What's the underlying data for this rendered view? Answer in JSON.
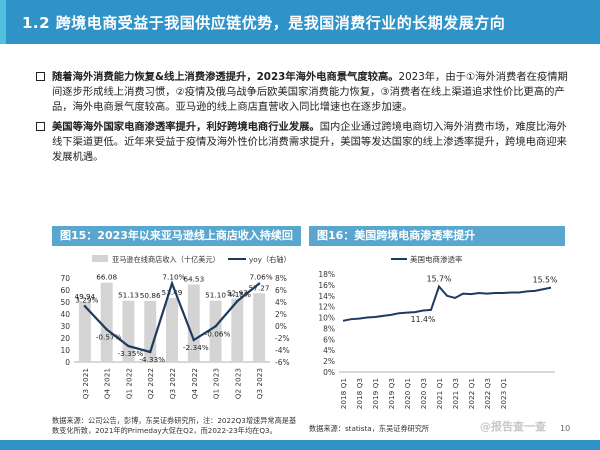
{
  "header": {
    "title": "1.2 跨境电商受益于我国供应链优势，是我国消费行业的长期发展方向"
  },
  "bullets": [
    {
      "bold": "随着海外消费能力恢复&线上消费渗透提升，2023年海外电商景气度较高。",
      "text": "2023年，由于①海外消费者在疫情期间逐步形成线上消费习惯，②疫情及俄乌战争后欧美国家消费能力恢复，③消费者在线上渠道追求性价比更高的产品，海外电商景气度较高。亚马逊的线上商店直营收入同比增速也在逐步加速。"
    },
    {
      "bold": "美国等海外国家电商渗透率提升，利好跨境电商行业发展。",
      "text": "国内企业通过跨境电商切入海外消费市场，难度比海外线下渠道更低。近年来受益于疫情及海外性价比消费需求提升，美国等发达国家的线上渗透率提升，跨境电商迎来发展机遇。"
    }
  ],
  "panel1": {
    "title": "图15：2023年以来亚马逊线上商店收入持续回暖",
    "source": "数据来源：公司公告，彭博，东吴证券研究所，注：2022Q3增速异常高是基数变化所致，2021年的Primeday大促在Q2，而2022-23年均在Q3。"
  },
  "panel2": {
    "title": "图16：美国跨境电商渗透率提升",
    "source": "数据来源：statista，东吴证券研究所"
  },
  "footer": {
    "watermark": "@报告查一查",
    "page": "10"
  },
  "colors": {
    "header": "#2f93c7",
    "bar": "#d4d4d4",
    "line": "#1f3a5f"
  },
  "chart_data": [
    {
      "type": "bar",
      "title": "图15：2023年以来亚马逊线上商店收入持续回暖",
      "categories": [
        "Q3 2021",
        "Q4 2021",
        "Q1 2022",
        "Q2 2022",
        "Q3 2022",
        "Q4 2022",
        "Q1 2023",
        "Q2 2023",
        "Q3 2023"
      ],
      "series": [
        {
          "name": "亚马逊在线商店收入（十亿美元）",
          "type": "bar",
          "axis": "left",
          "values": [
            49.94,
            66.08,
            51.13,
            50.86,
            53.49,
            64.53,
            51.1,
            52.97,
            57.27
          ]
        },
        {
          "name": "yoy（右轴）",
          "type": "line",
          "axis": "right",
          "values": [
            3.29,
            -0.57,
            -3.35,
            -4.33,
            7.1,
            -2.34,
            -0.06,
            4.15,
            7.06
          ],
          "labels": [
            "3.29%",
            "-0.57%",
            "-3.35%",
            "-4.33%",
            "7.10%",
            "-2.34%",
            "-0.06%",
            "4.15%",
            "7.06%"
          ]
        }
      ],
      "yleft": {
        "range": [
          0,
          70
        ],
        "ticks": [
          "0",
          "10",
          "20",
          "30",
          "40",
          "50",
          "60",
          "70"
        ]
      },
      "yright": {
        "range": [
          -6,
          8
        ],
        "ticks": [
          "-6%",
          "-4%",
          "-2%",
          "0%",
          "2%",
          "4%",
          "6%",
          "8%"
        ]
      },
      "legend": "top"
    },
    {
      "type": "line",
      "title": "图16：美国跨境电商渗透率提升",
      "x_ticks": [
        "2018 Q1",
        "2018 Q3",
        "2019 Q1",
        "2019 Q3",
        "2020 Q1",
        "2020 Q3",
        "2021 Q1",
        "2021 Q3",
        "2022 Q1",
        "2022 Q3",
        "2023 Q1"
      ],
      "series": [
        {
          "name": "美国电商渗透率",
          "values": [
            9.4,
            9.7,
            9.8,
            10.0,
            10.1,
            10.3,
            10.5,
            10.8,
            10.9,
            11.0,
            11.3,
            11.4,
            15.7,
            14.0,
            13.6,
            14.4,
            14.3,
            14.5,
            14.4,
            14.5,
            14.5,
            14.6,
            14.6,
            14.8,
            14.9,
            15.2,
            15.5
          ]
        }
      ],
      "annotations": [
        {
          "index": 11,
          "label": "11.4%"
        },
        {
          "index": 12,
          "label": "15.7%"
        },
        {
          "index": 26,
          "label": "15.5%"
        }
      ],
      "y": {
        "range": [
          0,
          18
        ],
        "ticks": [
          "0%",
          "2%",
          "4%",
          "6%",
          "8%",
          "10%",
          "12%",
          "14%",
          "16%",
          "18%"
        ]
      },
      "legend": "top"
    }
  ]
}
